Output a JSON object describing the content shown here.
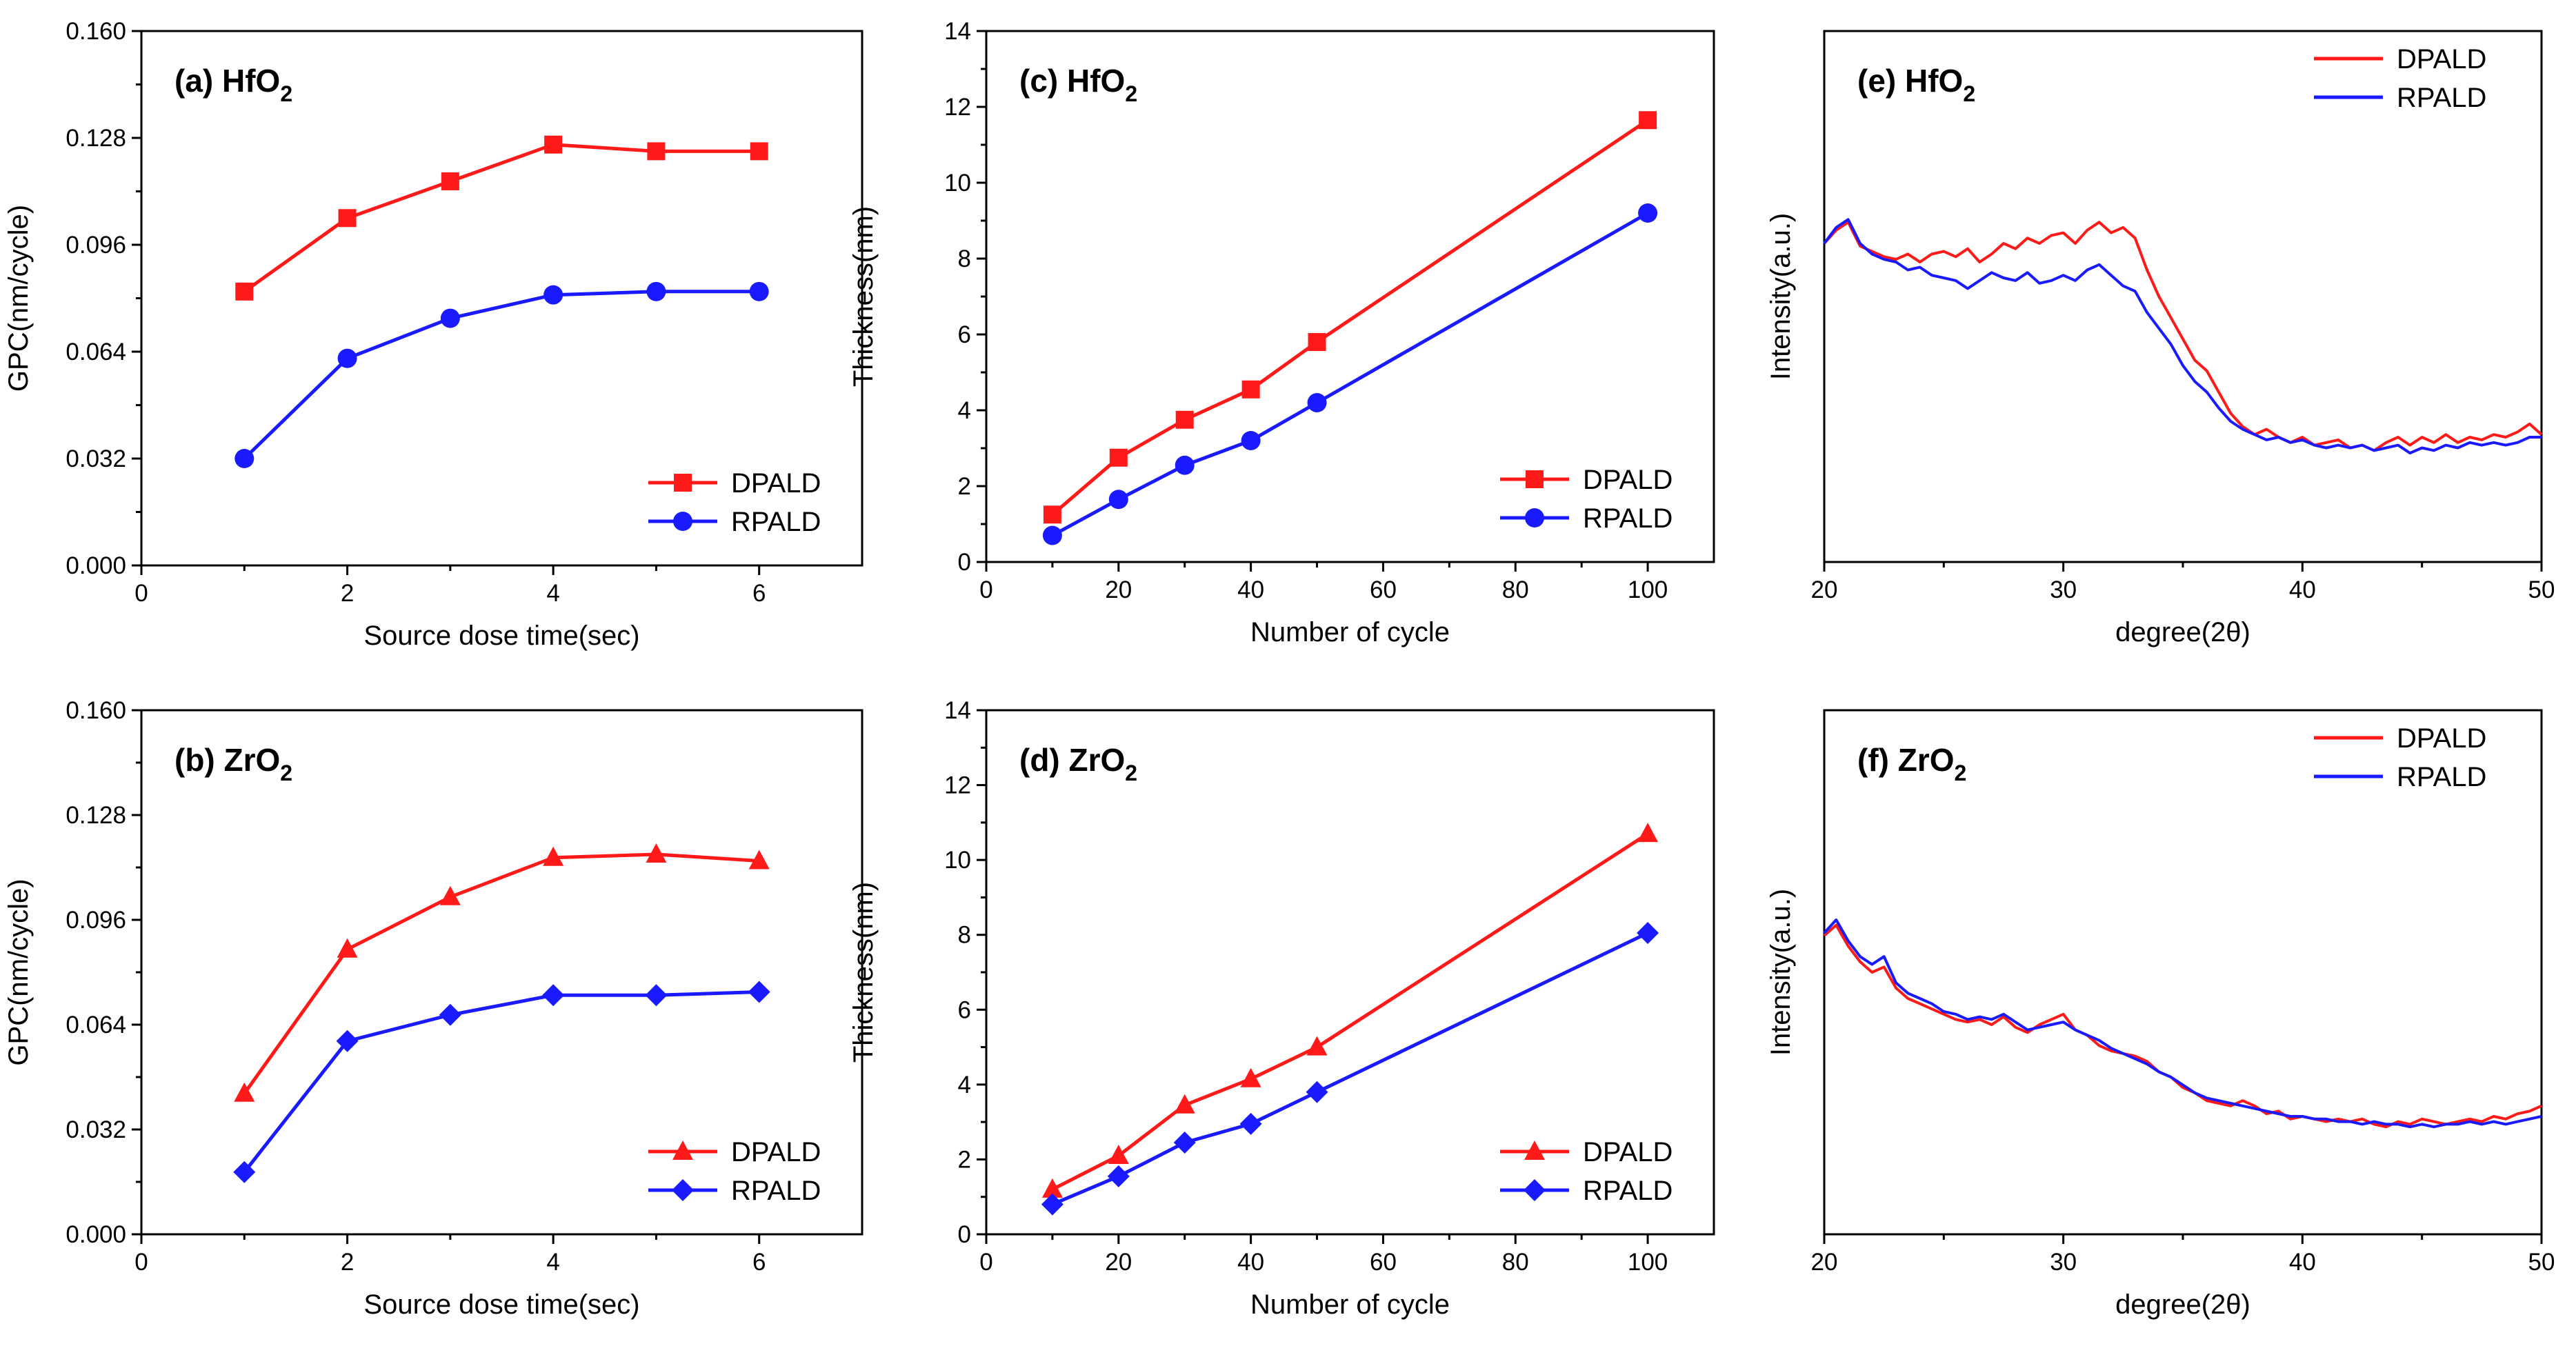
{
  "figure_colors": {
    "DPALD": "#ff1a1a",
    "RPALD": "#1a1aff"
  },
  "chart_data": [
    {
      "id": "a",
      "type": "line",
      "title": "(a) HfO",
      "title_sub": "2",
      "xlabel": "Source dose time(sec)",
      "ylabel": "GPC(nm/cycle)",
      "xlim": [
        0,
        7
      ],
      "ylim": [
        0,
        0.16
      ],
      "xticks": [
        0,
        2,
        4,
        6
      ],
      "xtick_labels": [
        "0",
        "2",
        "4",
        "6"
      ],
      "yticks": [
        0,
        0.032,
        0.064,
        0.096,
        0.128,
        0.16
      ],
      "ytick_labels": [
        "0.000",
        "0.032",
        "0.064",
        "0.096",
        "0.128",
        "0.160"
      ],
      "legend": "bottom-right",
      "series": [
        {
          "name": "DPALD",
          "marker": "square",
          "x": [
            1,
            2,
            3,
            4,
            5,
            6
          ],
          "y": [
            0.082,
            0.104,
            0.115,
            0.126,
            0.124,
            0.124
          ]
        },
        {
          "name": "RPALD",
          "marker": "circle",
          "x": [
            1,
            2,
            3,
            4,
            5,
            6
          ],
          "y": [
            0.032,
            0.062,
            0.074,
            0.081,
            0.082,
            0.082
          ]
        }
      ]
    },
    {
      "id": "c",
      "type": "line",
      "title": "(c) HfO",
      "title_sub": "2",
      "xlabel": "Number of cycle",
      "ylabel": "Thickness(nm)",
      "xlim": [
        0,
        110
      ],
      "ylim": [
        0,
        14
      ],
      "xticks": [
        0,
        20,
        40,
        60,
        80,
        100
      ],
      "xtick_labels": [
        "0",
        "20",
        "40",
        "60",
        "80",
        "100"
      ],
      "yticks": [
        0,
        2,
        4,
        6,
        8,
        10,
        12,
        14
      ],
      "ytick_labels": [
        "0",
        "2",
        "4",
        "6",
        "8",
        "10",
        "12",
        "14"
      ],
      "legend": "bottom-right",
      "series": [
        {
          "name": "DPALD",
          "marker": "square",
          "x": [
            10,
            20,
            30,
            40,
            50,
            100
          ],
          "y": [
            1.25,
            2.75,
            3.75,
            4.55,
            5.8,
            11.65
          ]
        },
        {
          "name": "RPALD",
          "marker": "circle",
          "x": [
            10,
            20,
            30,
            40,
            50,
            100
          ],
          "y": [
            0.7,
            1.65,
            2.55,
            3.2,
            4.2,
            9.2
          ]
        }
      ]
    },
    {
      "id": "e",
      "type": "line",
      "title": "(e) HfO",
      "title_sub": "2",
      "xlabel": "degree(2θ)",
      "ylabel": "Intensity(a.u.)",
      "xlim": [
        20,
        50
      ],
      "ylim": [
        0,
        1
      ],
      "xticks": [
        20,
        30,
        40,
        50
      ],
      "xtick_labels": [
        "20",
        "30",
        "40",
        "50"
      ],
      "yticks": [],
      "ytick_labels": [],
      "legend": "top-right",
      "series": [
        {
          "name": "DPALD",
          "marker": "none",
          "x": [
            20,
            20.5,
            21,
            21.5,
            22,
            22.5,
            23,
            23.5,
            24,
            24.5,
            25,
            25.5,
            26,
            26.5,
            27,
            27.5,
            28,
            28.5,
            29,
            29.5,
            30,
            30.5,
            31,
            31.5,
            32,
            32.5,
            33,
            33.5,
            34,
            34.5,
            35,
            35.5,
            36,
            36.5,
            37,
            37.5,
            38,
            38.5,
            39,
            39.5,
            40,
            40.5,
            41,
            41.5,
            42,
            42.5,
            43,
            43.5,
            44,
            44.5,
            45,
            45.5,
            46,
            46.5,
            47,
            47.5,
            48,
            48.5,
            49,
            49.5,
            50
          ],
          "y": [
            0.6,
            0.625,
            0.64,
            0.595,
            0.585,
            0.575,
            0.57,
            0.58,
            0.565,
            0.58,
            0.585,
            0.575,
            0.59,
            0.565,
            0.58,
            0.6,
            0.59,
            0.61,
            0.6,
            0.615,
            0.62,
            0.6,
            0.625,
            0.64,
            0.62,
            0.63,
            0.61,
            0.55,
            0.5,
            0.46,
            0.42,
            0.38,
            0.36,
            0.32,
            0.28,
            0.255,
            0.24,
            0.25,
            0.235,
            0.225,
            0.235,
            0.22,
            0.225,
            0.23,
            0.215,
            0.22,
            0.21,
            0.225,
            0.235,
            0.22,
            0.235,
            0.225,
            0.24,
            0.225,
            0.235,
            0.23,
            0.24,
            0.235,
            0.245,
            0.26,
            0.24
          ]
        },
        {
          "name": "RPALD",
          "marker": "none",
          "x": [
            20,
            20.5,
            21,
            21.5,
            22,
            22.5,
            23,
            23.5,
            24,
            24.5,
            25,
            25.5,
            26,
            26.5,
            27,
            27.5,
            28,
            28.5,
            29,
            29.5,
            30,
            30.5,
            31,
            31.5,
            32,
            32.5,
            33,
            33.5,
            34,
            34.5,
            35,
            35.5,
            36,
            36.5,
            37,
            37.5,
            38,
            38.5,
            39,
            39.5,
            40,
            40.5,
            41,
            41.5,
            42,
            42.5,
            43,
            43.5,
            44,
            44.5,
            45,
            45.5,
            46,
            46.5,
            47,
            47.5,
            48,
            48.5,
            49,
            49.5,
            50
          ],
          "y": [
            0.6,
            0.63,
            0.645,
            0.6,
            0.58,
            0.57,
            0.565,
            0.55,
            0.555,
            0.54,
            0.535,
            0.53,
            0.515,
            0.53,
            0.545,
            0.535,
            0.53,
            0.545,
            0.525,
            0.53,
            0.54,
            0.53,
            0.55,
            0.56,
            0.54,
            0.52,
            0.51,
            0.47,
            0.44,
            0.41,
            0.37,
            0.34,
            0.32,
            0.29,
            0.265,
            0.25,
            0.24,
            0.23,
            0.235,
            0.225,
            0.23,
            0.22,
            0.215,
            0.22,
            0.215,
            0.22,
            0.21,
            0.215,
            0.22,
            0.205,
            0.215,
            0.21,
            0.22,
            0.215,
            0.225,
            0.22,
            0.225,
            0.22,
            0.225,
            0.235,
            0.235
          ]
        }
      ]
    },
    {
      "id": "b",
      "type": "line",
      "title": "(b) ZrO",
      "title_sub": "2",
      "xlabel": "Source dose time(sec)",
      "ylabel": "GPC(nm/cycle)",
      "xlim": [
        0,
        7
      ],
      "ylim": [
        0,
        0.16
      ],
      "xticks": [
        0,
        2,
        4,
        6
      ],
      "xtick_labels": [
        "0",
        "2",
        "4",
        "6"
      ],
      "yticks": [
        0,
        0.032,
        0.064,
        0.096,
        0.128,
        0.16
      ],
      "ytick_labels": [
        "0.000",
        "0.032",
        "0.064",
        "0.096",
        "0.128",
        "0.160"
      ],
      "legend": "bottom-right",
      "series": [
        {
          "name": "DPALD",
          "marker": "triangle",
          "x": [
            1,
            2,
            3,
            4,
            5,
            6
          ],
          "y": [
            0.043,
            0.087,
            0.103,
            0.115,
            0.116,
            0.114
          ]
        },
        {
          "name": "RPALD",
          "marker": "diamond",
          "x": [
            1,
            2,
            3,
            4,
            5,
            6
          ],
          "y": [
            0.019,
            0.059,
            0.067,
            0.073,
            0.073,
            0.074
          ]
        }
      ]
    },
    {
      "id": "d",
      "type": "line",
      "title": "(d) ZrO",
      "title_sub": "2",
      "xlabel": "Number of cycle",
      "ylabel": "Thickness(nm)",
      "xlim": [
        0,
        110
      ],
      "ylim": [
        0,
        14
      ],
      "xticks": [
        0,
        20,
        40,
        60,
        80,
        100
      ],
      "xtick_labels": [
        "0",
        "20",
        "40",
        "60",
        "80",
        "100"
      ],
      "yticks": [
        0,
        2,
        4,
        6,
        8,
        10,
        12,
        14
      ],
      "ytick_labels": [
        "0",
        "2",
        "4",
        "6",
        "8",
        "10",
        "12",
        "14"
      ],
      "legend": "bottom-right",
      "series": [
        {
          "name": "DPALD",
          "marker": "triangle",
          "x": [
            10,
            20,
            30,
            40,
            50,
            100
          ],
          "y": [
            1.2,
            2.1,
            3.45,
            4.15,
            5.0,
            10.7
          ]
        },
        {
          "name": "RPALD",
          "marker": "diamond",
          "x": [
            10,
            20,
            30,
            40,
            50,
            100
          ],
          "y": [
            0.8,
            1.55,
            2.45,
            2.95,
            3.8,
            8.05
          ]
        }
      ]
    },
    {
      "id": "f",
      "type": "line",
      "title": "(f) ZrO",
      "title_sub": "2",
      "xlabel": "degree(2θ)",
      "ylabel": "Intensity(a.u.)",
      "xlim": [
        20,
        50
      ],
      "ylim": [
        0,
        1
      ],
      "xticks": [
        20,
        30,
        40,
        50
      ],
      "xtick_labels": [
        "20",
        "30",
        "40",
        "50"
      ],
      "yticks": [],
      "ytick_labels": [],
      "legend": "top-right",
      "series": [
        {
          "name": "DPALD",
          "marker": "none",
          "x": [
            20,
            20.5,
            21,
            21.5,
            22,
            22.5,
            23,
            23.5,
            24,
            24.5,
            25,
            25.5,
            26,
            26.5,
            27,
            27.5,
            28,
            28.5,
            29,
            29.5,
            30,
            30.5,
            31,
            31.5,
            32,
            32.5,
            33,
            33.5,
            34,
            34.5,
            35,
            35.5,
            36,
            36.5,
            37,
            37.5,
            38,
            38.5,
            39,
            39.5,
            40,
            40.5,
            41,
            41.5,
            42,
            42.5,
            43,
            43.5,
            44,
            44.5,
            45,
            45.5,
            46,
            46.5,
            47,
            47.5,
            48,
            48.5,
            49,
            49.5,
            50
          ],
          "y": [
            0.57,
            0.59,
            0.55,
            0.52,
            0.5,
            0.51,
            0.47,
            0.45,
            0.44,
            0.43,
            0.42,
            0.41,
            0.405,
            0.41,
            0.4,
            0.415,
            0.395,
            0.385,
            0.4,
            0.41,
            0.42,
            0.39,
            0.38,
            0.36,
            0.35,
            0.345,
            0.34,
            0.33,
            0.31,
            0.3,
            0.28,
            0.27,
            0.255,
            0.25,
            0.245,
            0.255,
            0.245,
            0.23,
            0.235,
            0.22,
            0.225,
            0.22,
            0.215,
            0.22,
            0.215,
            0.22,
            0.21,
            0.205,
            0.215,
            0.21,
            0.22,
            0.215,
            0.21,
            0.215,
            0.22,
            0.215,
            0.225,
            0.22,
            0.23,
            0.235,
            0.245
          ]
        },
        {
          "name": "RPALD",
          "marker": "none",
          "x": [
            20,
            20.5,
            21,
            21.5,
            22,
            22.5,
            23,
            23.5,
            24,
            24.5,
            25,
            25.5,
            26,
            26.5,
            27,
            27.5,
            28,
            28.5,
            29,
            29.5,
            30,
            30.5,
            31,
            31.5,
            32,
            32.5,
            33,
            33.5,
            34,
            34.5,
            35,
            35.5,
            36,
            36.5,
            37,
            37.5,
            38,
            38.5,
            39,
            39.5,
            40,
            40.5,
            41,
            41.5,
            42,
            42.5,
            43,
            43.5,
            44,
            44.5,
            45,
            45.5,
            46,
            46.5,
            47,
            47.5,
            48,
            48.5,
            49,
            49.5,
            50
          ],
          "y": [
            0.575,
            0.6,
            0.56,
            0.53,
            0.515,
            0.53,
            0.48,
            0.46,
            0.45,
            0.44,
            0.425,
            0.42,
            0.41,
            0.415,
            0.41,
            0.42,
            0.405,
            0.39,
            0.395,
            0.4,
            0.405,
            0.39,
            0.38,
            0.37,
            0.355,
            0.345,
            0.335,
            0.325,
            0.31,
            0.3,
            0.285,
            0.27,
            0.26,
            0.255,
            0.25,
            0.245,
            0.24,
            0.235,
            0.23,
            0.225,
            0.225,
            0.22,
            0.22,
            0.215,
            0.215,
            0.21,
            0.215,
            0.21,
            0.21,
            0.205,
            0.21,
            0.205,
            0.21,
            0.21,
            0.215,
            0.21,
            0.215,
            0.21,
            0.215,
            0.22,
            0.225
          ]
        }
      ]
    }
  ]
}
